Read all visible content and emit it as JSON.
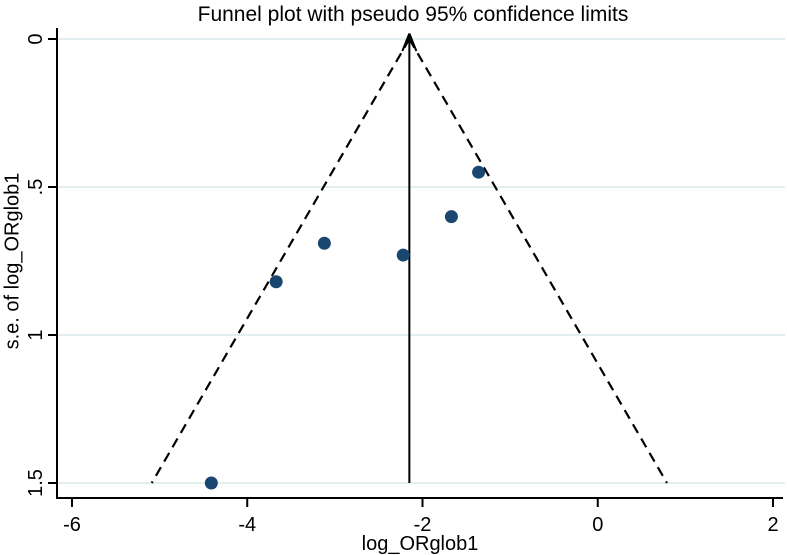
{
  "chart_data": {
    "type": "scatter",
    "subtype": "funnel-plot",
    "title": "Funnel plot with pseudo 95% confidence limits",
    "xlabel": "log_ORglob1",
    "ylabel": "s.e. of log_ORglob1",
    "x_axis": {
      "min": -6,
      "max": 2,
      "ticks": [
        {
          "value": -6,
          "label": "-6"
        },
        {
          "value": -4,
          "label": "-4"
        },
        {
          "value": -2,
          "label": "-2"
        },
        {
          "value": 0,
          "label": "0"
        },
        {
          "value": 2,
          "label": "2"
        }
      ]
    },
    "y_axis": {
      "min": 0,
      "max": 1.5,
      "reversed": true,
      "ticks": [
        {
          "value": 0,
          "label": "0"
        },
        {
          "value": 0.5,
          "label": ".5"
        },
        {
          "value": 1,
          "label": "1"
        },
        {
          "value": 1.5,
          "label": "1.5"
        }
      ]
    },
    "points": [
      {
        "x": -1.36,
        "se": 0.45
      },
      {
        "x": -1.67,
        "se": 0.6
      },
      {
        "x": -2.22,
        "se": 0.73
      },
      {
        "x": -3.12,
        "se": 0.69
      },
      {
        "x": -3.67,
        "se": 0.82
      },
      {
        "x": -4.41,
        "se": 1.5
      }
    ],
    "pooled_estimate": -2.15,
    "ci_multiplier": 1.96,
    "grid": "horizontal",
    "legend": "none",
    "colors": {
      "marker": "#1a476f",
      "grid": "#e3eef1",
      "axis": "#000000",
      "funnel_line": "#000000",
      "background": "#ffffff"
    }
  }
}
